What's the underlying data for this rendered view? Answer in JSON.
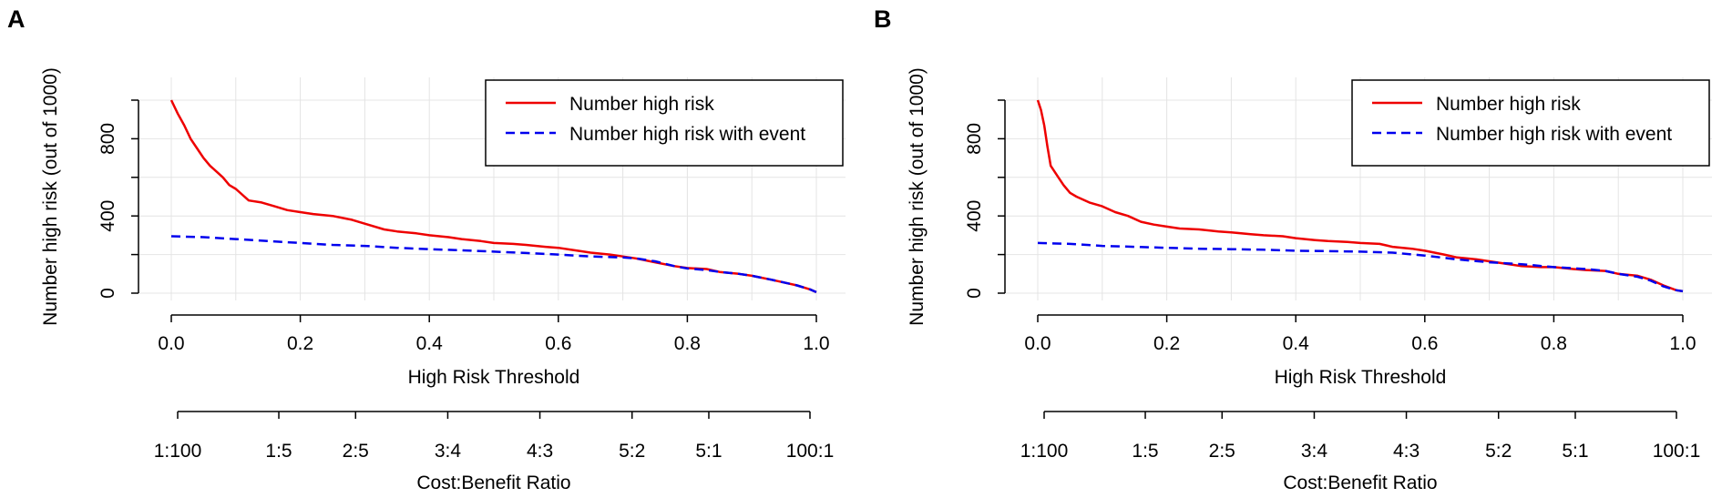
{
  "chart_data": [
    {
      "panel_label": "A",
      "type": "line",
      "title": "",
      "xlabel": "High Risk Threshold",
      "ylabel": "Number high risk (out of 1000)",
      "xlim": [
        0,
        1
      ],
      "ylim": [
        0,
        1000
      ],
      "x_ticks": [
        "0.0",
        "0.2",
        "0.4",
        "0.6",
        "0.8",
        "1.0"
      ],
      "x_tick_values": [
        0,
        0.2,
        0.4,
        0.6,
        0.8,
        1.0
      ],
      "y_ticks": [
        "0",
        "400",
        "800"
      ],
      "y_tick_values": [
        0,
        400,
        800
      ],
      "grid": true,
      "legend_position": "top-right",
      "series": [
        {
          "name": "Number high risk",
          "color": "#ee0000",
          "style": "solid",
          "x": [
            0,
            0.01,
            0.02,
            0.03,
            0.04,
            0.05,
            0.06,
            0.07,
            0.08,
            0.09,
            0.1,
            0.12,
            0.14,
            0.16,
            0.18,
            0.2,
            0.22,
            0.25,
            0.28,
            0.3,
            0.33,
            0.35,
            0.38,
            0.4,
            0.43,
            0.45,
            0.48,
            0.5,
            0.53,
            0.55,
            0.58,
            0.6,
            0.63,
            0.65,
            0.68,
            0.7,
            0.72,
            0.75,
            0.78,
            0.8,
            0.83,
            0.85,
            0.88,
            0.9,
            0.93,
            0.95,
            0.97,
            0.99,
            1.0
          ],
          "values": [
            1000,
            930,
            870,
            800,
            750,
            700,
            660,
            630,
            600,
            560,
            540,
            480,
            470,
            450,
            430,
            420,
            410,
            400,
            380,
            360,
            330,
            320,
            310,
            300,
            290,
            280,
            270,
            260,
            255,
            250,
            240,
            235,
            220,
            210,
            200,
            190,
            180,
            160,
            140,
            130,
            125,
            110,
            100,
            90,
            70,
            55,
            40,
            20,
            5
          ]
        },
        {
          "name": "Number high risk with event",
          "color": "#0000ee",
          "style": "dashed",
          "x": [
            0,
            0.05,
            0.1,
            0.15,
            0.2,
            0.25,
            0.3,
            0.35,
            0.4,
            0.45,
            0.5,
            0.55,
            0.6,
            0.65,
            0.7,
            0.72,
            0.75,
            0.78,
            0.8,
            0.83,
            0.85,
            0.88,
            0.9,
            0.93,
            0.95,
            0.97,
            0.99,
            1.0
          ],
          "values": [
            295,
            290,
            280,
            270,
            260,
            250,
            245,
            235,
            228,
            222,
            215,
            208,
            200,
            190,
            185,
            180,
            165,
            140,
            128,
            120,
            110,
            100,
            90,
            70,
            55,
            40,
            20,
            5
          ]
        }
      ],
      "secondary_axis": {
        "label": "Cost:Benefit Ratio",
        "ticks": [
          "1:100",
          "1:5",
          "2:5",
          "3:4",
          "4:3",
          "5:2",
          "5:1",
          "100:1"
        ],
        "tick_thresholds": [
          0.0099,
          0.1667,
          0.2857,
          0.4286,
          0.5714,
          0.7143,
          0.8333,
          0.9901
        ]
      }
    },
    {
      "panel_label": "B",
      "type": "line",
      "title": "",
      "xlabel": "High Risk Threshold",
      "ylabel": "Number high risk (out of 1000)",
      "xlim": [
        0,
        1
      ],
      "ylim": [
        0,
        1000
      ],
      "x_ticks": [
        "0.0",
        "0.2",
        "0.4",
        "0.6",
        "0.8",
        "1.0"
      ],
      "x_tick_values": [
        0,
        0.2,
        0.4,
        0.6,
        0.8,
        1.0
      ],
      "y_ticks": [
        "0",
        "400",
        "800"
      ],
      "y_tick_values": [
        0,
        400,
        800
      ],
      "grid": true,
      "legend_position": "top-right",
      "series": [
        {
          "name": "Number high risk",
          "color": "#ee0000",
          "style": "solid",
          "x": [
            0,
            0.005,
            0.01,
            0.015,
            0.02,
            0.03,
            0.04,
            0.05,
            0.06,
            0.08,
            0.1,
            0.12,
            0.14,
            0.16,
            0.18,
            0.2,
            0.22,
            0.25,
            0.28,
            0.3,
            0.33,
            0.35,
            0.38,
            0.4,
            0.43,
            0.45,
            0.48,
            0.5,
            0.53,
            0.55,
            0.58,
            0.6,
            0.63,
            0.65,
            0.68,
            0.7,
            0.72,
            0.75,
            0.78,
            0.8,
            0.83,
            0.85,
            0.88,
            0.9,
            0.93,
            0.95,
            0.97,
            0.99,
            1.0
          ],
          "values": [
            1000,
            950,
            870,
            760,
            660,
            610,
            560,
            520,
            500,
            470,
            450,
            420,
            400,
            370,
            355,
            345,
            335,
            330,
            320,
            315,
            305,
            300,
            295,
            285,
            275,
            270,
            265,
            260,
            255,
            240,
            230,
            220,
            200,
            185,
            175,
            165,
            155,
            140,
            135,
            135,
            125,
            120,
            115,
            100,
            90,
            70,
            40,
            15,
            10
          ]
        },
        {
          "name": "Number high risk with event",
          "color": "#0000ee",
          "style": "dashed",
          "x": [
            0,
            0.05,
            0.1,
            0.15,
            0.2,
            0.25,
            0.3,
            0.35,
            0.4,
            0.45,
            0.5,
            0.55,
            0.6,
            0.65,
            0.7,
            0.75,
            0.8,
            0.85,
            0.88,
            0.9,
            0.93,
            0.95,
            0.97,
            0.99,
            1.0
          ],
          "values": [
            260,
            255,
            245,
            240,
            235,
            230,
            228,
            225,
            220,
            218,
            215,
            210,
            195,
            175,
            160,
            150,
            135,
            125,
            115,
            100,
            85,
            65,
            35,
            15,
            10
          ]
        }
      ],
      "secondary_axis": {
        "label": "Cost:Benefit Ratio",
        "ticks": [
          "1:100",
          "1:5",
          "2:5",
          "3:4",
          "4:3",
          "5:2",
          "5:1",
          "100:1"
        ],
        "tick_thresholds": [
          0.0099,
          0.1667,
          0.2857,
          0.4286,
          0.5714,
          0.7143,
          0.8333,
          0.9901
        ]
      }
    }
  ]
}
